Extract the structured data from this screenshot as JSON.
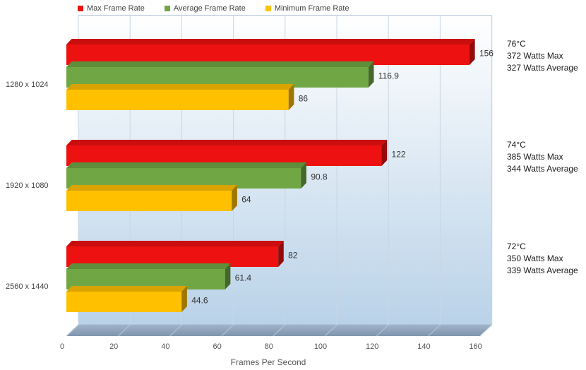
{
  "chart_data": {
    "type": "bar",
    "orientation": "horizontal",
    "style": "3d",
    "categories": [
      "1280 x 1024",
      "1920 x 1080",
      "2560 x 1440"
    ],
    "series": [
      {
        "name": "Max Frame Rate",
        "color": "#ee1111",
        "values": [
          156,
          122,
          82
        ],
        "labels": [
          "156",
          "122",
          "82"
        ]
      },
      {
        "name": "Average Frame Rate",
        "color": "#70a744",
        "values": [
          116.9,
          90.8,
          61.4
        ],
        "labels": [
          "116.9",
          "90.8",
          "61.4"
        ]
      },
      {
        "name": "Minimum Frame Rate",
        "color": "#ffc000",
        "values": [
          86,
          64,
          44.6
        ],
        "labels": [
          "86",
          "64",
          "44.6"
        ]
      }
    ],
    "xlabel": "Frames Per Second",
    "ylabel": "",
    "xlim": [
      0,
      160
    ],
    "xticks": [
      "0",
      "20",
      "40",
      "60",
      "80",
      "100",
      "120",
      "140",
      "160"
    ],
    "grid": true,
    "legend_position": "top",
    "annotations": [
      {
        "temp": "76°C",
        "max_watts": "372 Watts Max",
        "avg_watts": "327 Watts Average"
      },
      {
        "temp": "74°C",
        "max_watts": "385 Watts Max",
        "avg_watts": "344 Watts Average"
      },
      {
        "temp": "72°C",
        "max_watts": "350 Watts Max",
        "avg_watts": "339 Watts Average"
      }
    ]
  }
}
